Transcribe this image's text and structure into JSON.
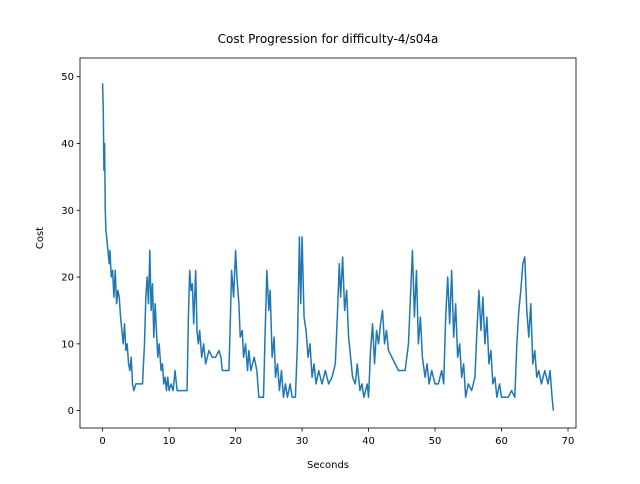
{
  "chart_data": {
    "type": "line",
    "title": "Cost Progression for difficulty-4/s04a",
    "x_label": "Seconds",
    "y_label": "Cost",
    "color": "#1f77b4",
    "x": [
      0,
      0.1,
      0.2,
      0.3,
      0.4,
      0.5,
      0.6,
      0.8,
      1.0,
      1.1,
      1.3,
      1.5,
      1.7,
      1.9,
      2.1,
      2.3,
      2.5,
      2.7,
      2.9,
      3.1,
      3.3,
      3.5,
      3.7,
      3.9,
      4.1,
      4.3,
      4.5,
      4.7,
      5.0,
      6.0,
      6.3,
      6.5,
      6.7,
      6.9,
      7.1,
      7.3,
      7.5,
      7.7,
      7.9,
      8.1,
      8.3,
      8.5,
      8.8,
      9.0,
      9.2,
      9.4,
      9.6,
      9.8,
      10.0,
      10.3,
      10.6,
      10.9,
      11.2,
      12.7,
      12.9,
      13.1,
      13.3,
      13.5,
      13.7,
      14.0,
      14.2,
      14.4,
      14.6,
      14.9,
      15.2,
      15.5,
      16.0,
      16.5,
      17.0,
      17.5,
      17.8,
      18.0,
      19.0,
      19.2,
      19.4,
      19.7,
      20.0,
      20.2,
      20.5,
      20.7,
      21.0,
      21.2,
      21.5,
      21.8,
      22.0,
      22.3,
      22.8,
      23.2,
      23.5,
      24.2,
      24.4,
      24.7,
      25.0,
      25.2,
      25.5,
      25.8,
      26.0,
      26.3,
      26.6,
      26.9,
      27.2,
      27.5,
      27.8,
      28.2,
      28.5,
      29.0,
      29.3,
      29.6,
      29.8,
      30.0,
      30.3,
      30.6,
      30.9,
      31.2,
      31.5,
      31.8,
      32.1,
      32.5,
      33.0,
      33.5,
      34.0,
      34.5,
      35.0,
      35.3,
      35.6,
      35.8,
      36.1,
      36.4,
      36.7,
      37.0,
      37.3,
      37.6,
      38.0,
      38.3,
      38.7,
      39.0,
      39.3,
      39.8,
      40.0,
      40.3,
      40.6,
      40.9,
      41.2,
      41.5,
      41.8,
      42.1,
      42.4,
      42.7,
      43.0,
      43.5,
      44.0,
      44.5,
      45.5,
      46.0,
      46.3,
      46.6,
      46.9,
      47.2,
      47.5,
      47.8,
      48.1,
      48.5,
      48.8,
      49.1,
      49.5,
      50.0,
      50.5,
      51.0,
      51.3,
      51.6,
      51.9,
      52.2,
      52.5,
      52.8,
      53.1,
      53.4,
      53.7,
      54.0,
      54.3,
      54.6,
      55.0,
      55.5,
      56.0,
      56.3,
      56.6,
      56.9,
      57.2,
      57.5,
      57.8,
      58.1,
      58.4,
      58.7,
      59.0,
      59.3,
      59.7,
      60.0,
      61.0,
      61.5,
      62.0,
      62.3,
      62.6,
      62.9,
      63.2,
      63.5,
      63.8,
      64.1,
      64.4,
      64.7,
      65.0,
      65.3,
      65.6,
      66.0,
      66.5,
      67.0,
      67.3,
      67.6,
      67.8
    ],
    "values": [
      49,
      45,
      36,
      40,
      30,
      27,
      26,
      24,
      22,
      24,
      20,
      21,
      17,
      21,
      16,
      18,
      17,
      14,
      12,
      10,
      13,
      9,
      10,
      7,
      6,
      8,
      4,
      3,
      4,
      4,
      10,
      17,
      20,
      16,
      24,
      15,
      19,
      11,
      16,
      12,
      8,
      10,
      6,
      7,
      4,
      5,
      3,
      5,
      3,
      4,
      3,
      6,
      3,
      3,
      14,
      21,
      18,
      19,
      13,
      21,
      12,
      10,
      12,
      8,
      10,
      7,
      9,
      8,
      8,
      9,
      8,
      6,
      6,
      13,
      21,
      17,
      24,
      20,
      16,
      11,
      12,
      8,
      10,
      6,
      9,
      6,
      8,
      6,
      2,
      2,
      10,
      21,
      15,
      18,
      8,
      11,
      5,
      7,
      3,
      6,
      2,
      4,
      2,
      4,
      2,
      2,
      10,
      26,
      16,
      26,
      14,
      12,
      8,
      10,
      5,
      7,
      4,
      6,
      4,
      6,
      4,
      5,
      7,
      14,
      22,
      17,
      23,
      15,
      18,
      11,
      8,
      5,
      4,
      7,
      3,
      4,
      2,
      4,
      2,
      9,
      13,
      7,
      12,
      10,
      13,
      15,
      10,
      12,
      9,
      8,
      7,
      6,
      6,
      10,
      17,
      24,
      14,
      21,
      10,
      14,
      8,
      5,
      7,
      4,
      6,
      4,
      4,
      6,
      4,
      14,
      20,
      13,
      21,
      11,
      16,
      8,
      10,
      5,
      7,
      2,
      4,
      3,
      5,
      12,
      18,
      12,
      17,
      10,
      14,
      7,
      9,
      4,
      5,
      2,
      4,
      2,
      2,
      3,
      2,
      10,
      15,
      18,
      22,
      23,
      15,
      11,
      16,
      7,
      9,
      5,
      6,
      4,
      6,
      4,
      6,
      2,
      0
    ],
    "xlim": [
      -3.4,
      71.2
    ],
    "ylim": [
      -2.6,
      52.8
    ],
    "xticks": [
      0,
      10,
      20,
      30,
      40,
      50,
      60,
      70
    ],
    "yticks": [
      0,
      10,
      20,
      30,
      40,
      50
    ]
  }
}
